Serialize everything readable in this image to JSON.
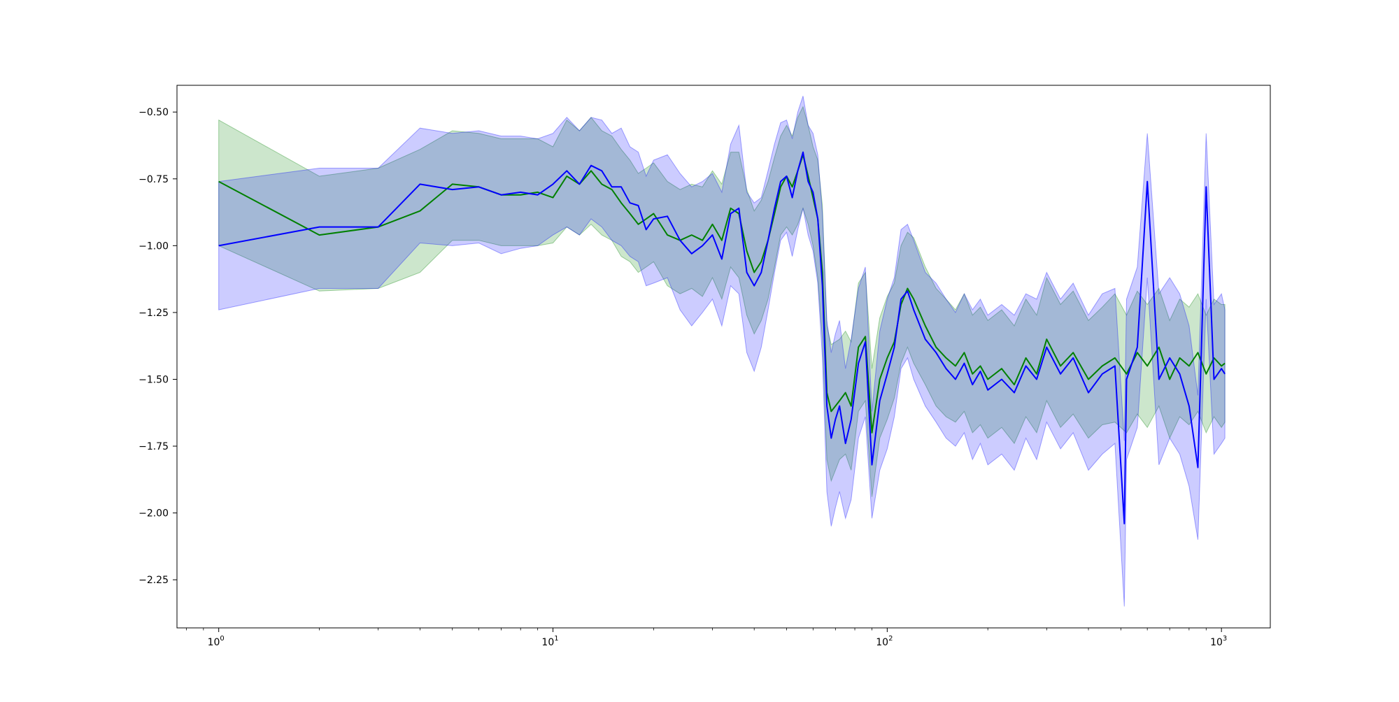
{
  "chart_data": {
    "type": "line",
    "title": "",
    "xlabel": "",
    "ylabel": "",
    "xscale": "log",
    "xlim": [
      0.75,
      1400
    ],
    "ylim": [
      -2.43,
      -0.4
    ],
    "grid": false,
    "legend": "none",
    "x_ticks": [
      {
        "value": 1,
        "base": "10",
        "exp": "0"
      },
      {
        "value": 10,
        "base": "10",
        "exp": "1"
      },
      {
        "value": 100,
        "base": "10",
        "exp": "2"
      },
      {
        "value": 1000,
        "base": "10",
        "exp": "3"
      }
    ],
    "y_ticks": [
      {
        "value": -0.5,
        "label": "−0.50"
      },
      {
        "value": -0.75,
        "label": "−0.75"
      },
      {
        "value": -1.0,
        "label": "−1.00"
      },
      {
        "value": -1.25,
        "label": "−1.25"
      },
      {
        "value": -1.5,
        "label": "−1.50"
      },
      {
        "value": -1.75,
        "label": "−1.75"
      },
      {
        "value": -2.0,
        "label": "−2.00"
      },
      {
        "value": -2.25,
        "label": "−2.25"
      }
    ],
    "series": [
      {
        "color": "#008000",
        "band_color": "#008000",
        "band_opacity": 0.2,
        "x": [
          1,
          2,
          3,
          4,
          5,
          6,
          7,
          8,
          9,
          10,
          11,
          12,
          13,
          14,
          15,
          16,
          17,
          18,
          19,
          20,
          22,
          24,
          26,
          28,
          30,
          32,
          34,
          36,
          38,
          40,
          42,
          44,
          46,
          48,
          50,
          52,
          54,
          56,
          58,
          60,
          62,
          64,
          66,
          68,
          70,
          72,
          75,
          78,
          82,
          86,
          90,
          95,
          100,
          105,
          110,
          115,
          120,
          130,
          140,
          150,
          160,
          170,
          180,
          190,
          200,
          220,
          240,
          260,
          280,
          300,
          330,
          360,
          400,
          440,
          480,
          520,
          560,
          600,
          650,
          700,
          750,
          800,
          850,
          900,
          950,
          1000,
          1024
        ],
        "y": [
          -0.76,
          -0.96,
          -0.93,
          -0.87,
          -0.77,
          -0.78,
          -0.81,
          -0.81,
          -0.8,
          -0.82,
          -0.74,
          -0.77,
          -0.72,
          -0.77,
          -0.79,
          -0.84,
          -0.88,
          -0.92,
          -0.9,
          -0.88,
          -0.96,
          -0.98,
          -0.96,
          -0.98,
          -0.92,
          -0.98,
          -0.86,
          -0.88,
          -1.02,
          -1.1,
          -1.06,
          -0.98,
          -0.88,
          -0.78,
          -0.74,
          -0.78,
          -0.72,
          -0.66,
          -0.74,
          -0.82,
          -0.9,
          -1.1,
          -1.55,
          -1.62,
          -1.6,
          -1.58,
          -1.55,
          -1.6,
          -1.38,
          -1.34,
          -1.7,
          -1.5,
          -1.42,
          -1.36,
          -1.22,
          -1.16,
          -1.2,
          -1.3,
          -1.38,
          -1.42,
          -1.45,
          -1.4,
          -1.48,
          -1.45,
          -1.5,
          -1.46,
          -1.52,
          -1.42,
          -1.48,
          -1.35,
          -1.45,
          -1.4,
          -1.5,
          -1.45,
          -1.42,
          -1.48,
          -1.4,
          -1.45,
          -1.38,
          -1.5,
          -1.42,
          -1.45,
          -1.4,
          -1.48,
          -1.42,
          -1.45,
          -1.44
        ],
        "lower": [
          -1.0,
          -1.17,
          -1.16,
          -1.1,
          -0.98,
          -0.98,
          -1.0,
          -1.0,
          -1.0,
          -0.99,
          -0.93,
          -0.96,
          -0.92,
          -0.96,
          -0.98,
          -1.04,
          -1.06,
          -1.1,
          -1.08,
          -1.06,
          -1.15,
          -1.18,
          -1.16,
          -1.19,
          -1.12,
          -1.2,
          -1.08,
          -1.12,
          -1.26,
          -1.33,
          -1.28,
          -1.2,
          -1.08,
          -0.96,
          -0.93,
          -0.96,
          -0.92,
          -0.86,
          -0.92,
          -1.0,
          -1.12,
          -1.35,
          -1.8,
          -1.88,
          -1.84,
          -1.8,
          -1.78,
          -1.84,
          -1.62,
          -1.58,
          -1.94,
          -1.72,
          -1.65,
          -1.57,
          -1.44,
          -1.38,
          -1.44,
          -1.52,
          -1.6,
          -1.64,
          -1.66,
          -1.62,
          -1.7,
          -1.67,
          -1.72,
          -1.68,
          -1.74,
          -1.64,
          -1.7,
          -1.58,
          -1.68,
          -1.63,
          -1.72,
          -1.67,
          -1.66,
          -1.7,
          -1.63,
          -1.68,
          -1.6,
          -1.72,
          -1.64,
          -1.67,
          -1.62,
          -1.7,
          -1.64,
          -1.68,
          -1.66
        ],
        "upper": [
          -0.53,
          -0.74,
          -0.71,
          -0.64,
          -0.57,
          -0.58,
          -0.6,
          -0.6,
          -0.6,
          -0.63,
          -0.53,
          -0.57,
          -0.52,
          -0.57,
          -0.59,
          -0.64,
          -0.68,
          -0.73,
          -0.71,
          -0.69,
          -0.76,
          -0.79,
          -0.77,
          -0.78,
          -0.72,
          -0.77,
          -0.65,
          -0.65,
          -0.79,
          -0.87,
          -0.83,
          -0.76,
          -0.67,
          -0.59,
          -0.55,
          -0.59,
          -0.52,
          -0.48,
          -0.55,
          -0.63,
          -0.68,
          -0.85,
          -1.3,
          -1.37,
          -1.36,
          -1.35,
          -1.32,
          -1.36,
          -1.14,
          -1.1,
          -1.46,
          -1.27,
          -1.19,
          -1.14,
          -1.0,
          -0.95,
          -0.97,
          -1.08,
          -1.16,
          -1.2,
          -1.24,
          -1.18,
          -1.26,
          -1.23,
          -1.28,
          -1.24,
          -1.3,
          -1.2,
          -1.26,
          -1.12,
          -1.22,
          -1.17,
          -1.28,
          -1.23,
          -1.18,
          -1.26,
          -1.17,
          -1.22,
          -1.16,
          -1.28,
          -1.2,
          -1.23,
          -1.18,
          -1.26,
          -1.2,
          -1.22,
          -1.22
        ]
      },
      {
        "color": "#0000ff",
        "band_color": "#0000ff",
        "band_opacity": 0.2,
        "x": [
          1,
          2,
          3,
          4,
          5,
          6,
          7,
          8,
          9,
          10,
          11,
          12,
          13,
          14,
          15,
          16,
          17,
          18,
          19,
          20,
          22,
          24,
          26,
          28,
          30,
          32,
          34,
          36,
          38,
          40,
          42,
          44,
          46,
          48,
          50,
          52,
          54,
          56,
          58,
          60,
          62,
          64,
          66,
          68,
          70,
          72,
          75,
          78,
          82,
          86,
          90,
          95,
          100,
          105,
          110,
          115,
          120,
          130,
          140,
          150,
          160,
          170,
          180,
          190,
          200,
          220,
          240,
          260,
          280,
          300,
          330,
          360,
          400,
          440,
          480,
          512,
          520,
          560,
          600,
          650,
          700,
          750,
          800,
          850,
          900,
          950,
          1000,
          1024
        ],
        "y": [
          -1.0,
          -0.93,
          -0.93,
          -0.77,
          -0.79,
          -0.78,
          -0.81,
          -0.8,
          -0.81,
          -0.77,
          -0.72,
          -0.77,
          -0.7,
          -0.72,
          -0.78,
          -0.78,
          -0.84,
          -0.85,
          -0.94,
          -0.9,
          -0.89,
          -0.98,
          -1.03,
          -1.0,
          -0.96,
          -1.05,
          -0.88,
          -0.86,
          -1.1,
          -1.15,
          -1.1,
          -0.98,
          -0.86,
          -0.76,
          -0.74,
          -0.82,
          -0.72,
          -0.65,
          -0.76,
          -0.8,
          -0.9,
          -1.15,
          -1.6,
          -1.72,
          -1.65,
          -1.6,
          -1.74,
          -1.65,
          -1.44,
          -1.36,
          -1.82,
          -1.58,
          -1.48,
          -1.38,
          -1.2,
          -1.17,
          -1.24,
          -1.35,
          -1.4,
          -1.46,
          -1.5,
          -1.44,
          -1.52,
          -1.47,
          -1.54,
          -1.5,
          -1.55,
          -1.45,
          -1.5,
          -1.38,
          -1.48,
          -1.42,
          -1.55,
          -1.48,
          -1.45,
          -2.04,
          -1.5,
          -1.38,
          -0.76,
          -1.5,
          -1.42,
          -1.48,
          -1.6,
          -1.83,
          -0.78,
          -1.5,
          -1.46,
          -1.48
        ],
        "lower": [
          -1.24,
          -1.16,
          -1.16,
          -0.99,
          -1.0,
          -0.99,
          -1.03,
          -1.01,
          -1.0,
          -0.96,
          -0.93,
          -0.96,
          -0.9,
          -0.93,
          -0.98,
          -1.0,
          -1.04,
          -1.06,
          -1.15,
          -1.14,
          -1.12,
          -1.24,
          -1.3,
          -1.25,
          -1.2,
          -1.3,
          -1.15,
          -1.18,
          -1.4,
          -1.47,
          -1.38,
          -1.24,
          -1.1,
          -0.98,
          -0.95,
          -1.04,
          -0.94,
          -0.86,
          -0.96,
          -1.02,
          -1.14,
          -1.42,
          -1.92,
          -2.05,
          -1.98,
          -1.92,
          -2.02,
          -1.95,
          -1.72,
          -1.64,
          -2.02,
          -1.84,
          -1.76,
          -1.64,
          -1.46,
          -1.42,
          -1.5,
          -1.6,
          -1.66,
          -1.72,
          -1.75,
          -1.7,
          -1.8,
          -1.74,
          -1.82,
          -1.78,
          -1.84,
          -1.72,
          -1.8,
          -1.66,
          -1.76,
          -1.7,
          -1.84,
          -1.78,
          -1.74,
          -2.35,
          -1.8,
          -1.68,
          -1.12,
          -1.82,
          -1.72,
          -1.78,
          -1.9,
          -2.1,
          -1.2,
          -1.78,
          -1.74,
          -1.72
        ],
        "upper": [
          -0.76,
          -0.71,
          -0.71,
          -0.56,
          -0.58,
          -0.57,
          -0.59,
          -0.59,
          -0.6,
          -0.58,
          -0.52,
          -0.57,
          -0.52,
          -0.53,
          -0.58,
          -0.56,
          -0.63,
          -0.65,
          -0.74,
          -0.68,
          -0.66,
          -0.73,
          -0.78,
          -0.76,
          -0.73,
          -0.8,
          -0.62,
          -0.55,
          -0.8,
          -0.84,
          -0.82,
          -0.72,
          -0.62,
          -0.54,
          -0.53,
          -0.6,
          -0.5,
          -0.44,
          -0.55,
          -0.58,
          -0.66,
          -0.88,
          -1.28,
          -1.4,
          -1.33,
          -1.28,
          -1.46,
          -1.35,
          -1.16,
          -1.08,
          -1.62,
          -1.32,
          -1.2,
          -1.12,
          -0.94,
          -0.92,
          -0.98,
          -1.1,
          -1.14,
          -1.2,
          -1.25,
          -1.18,
          -1.24,
          -1.2,
          -1.26,
          -1.22,
          -1.26,
          -1.18,
          -1.2,
          -1.1,
          -1.2,
          -1.14,
          -1.26,
          -1.18,
          -1.16,
          -1.73,
          -1.2,
          -1.08,
          -0.58,
          -1.18,
          -1.12,
          -1.18,
          -1.3,
          -1.56,
          -0.58,
          -1.22,
          -1.18,
          -1.24
        ]
      }
    ]
  }
}
